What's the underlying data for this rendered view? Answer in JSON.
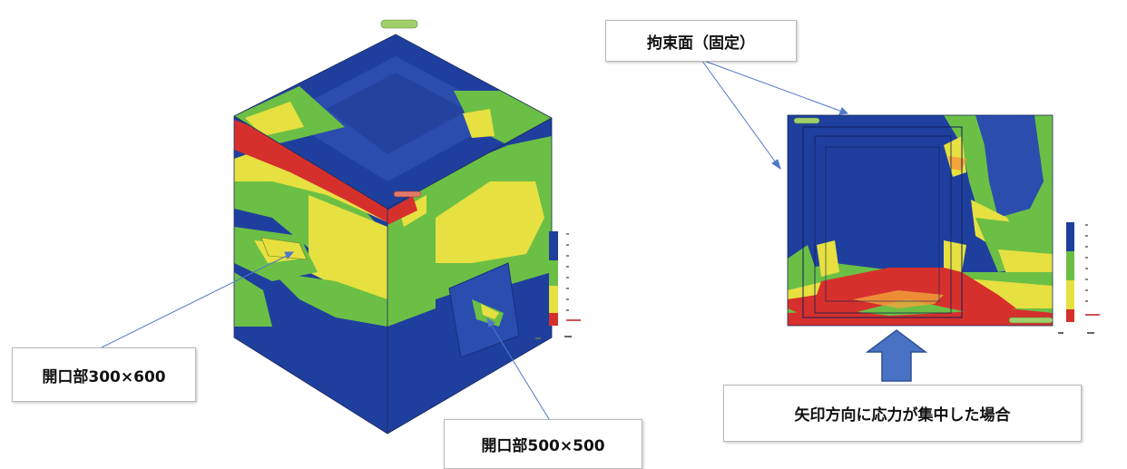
{
  "callouts": {
    "constraint_face": "拘束面（固定）",
    "opening_300x600": "開口部300×600",
    "opening_500x500": "開口部500×500",
    "stress_direction": "矢印方向に応力が集中した場合"
  },
  "colors": {
    "blue": "#1f3f9e",
    "green": "#6cbf45",
    "yellow": "#e6e040",
    "orange": "#f2a43a",
    "red": "#d6302d",
    "arrow_fill": "#4a72c4",
    "leader_line": "#4f79c7"
  }
}
